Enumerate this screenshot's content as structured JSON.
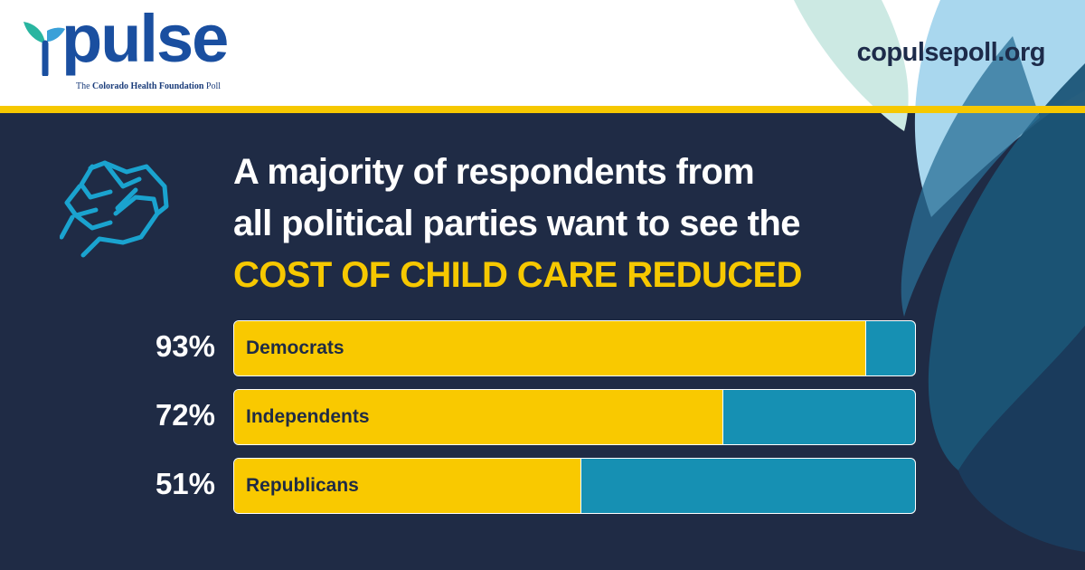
{
  "header": {
    "logo_word": "pulse",
    "logo_tagline_prefix": "The ",
    "logo_tagline_strong": "Colorado Health Foundation",
    "logo_tagline_suffix": " Poll",
    "site_url": "copulsepoll.org"
  },
  "headline": {
    "line1": "A majority of respondents from",
    "line2": "all political parties want to see the",
    "highlight": "COST OF CHILD CARE REDUCED"
  },
  "icons": {
    "logo_mark": "leaf-icon",
    "hands": "clasped-hands-icon"
  },
  "colors": {
    "navy_background": "#1f2b45",
    "gold": "#f6c800",
    "bar_fill": "#f9c900",
    "bar_track": "#1690b3",
    "logo_blue": "#1a4fa0",
    "hands_icon": "#1aa3cf"
  },
  "chart_data": {
    "type": "bar",
    "orientation": "horizontal",
    "title": "A majority of respondents from all political parties want to see the COST OF CHILD CARE REDUCED",
    "categories": [
      "Democrats",
      "Independents",
      "Republicans"
    ],
    "values": [
      93,
      72,
      51
    ],
    "value_labels": [
      "93%",
      "72%",
      "51%"
    ],
    "unit": "%",
    "xlim": [
      0,
      100
    ],
    "grid": false,
    "legend": "none"
  }
}
